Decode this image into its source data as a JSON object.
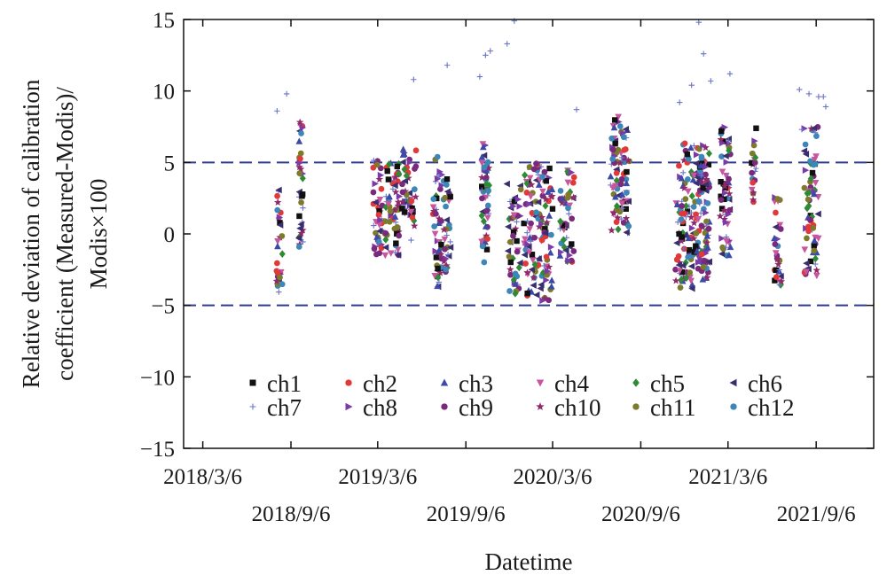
{
  "chart_data": {
    "type": "scatter",
    "title": "",
    "xlabel": "Datetime",
    "ylabel_lines": [
      "Relative deviation of calibration",
      "coefficient (Measured-Modis)/",
      "Modis×100"
    ],
    "ylim": [
      -15,
      15
    ],
    "yticks": [
      {
        "value": 15,
        "label": "15"
      },
      {
        "value": 10,
        "label": "10"
      },
      {
        "value": 5,
        "label": "5"
      },
      {
        "value": 0,
        "label": "0"
      },
      {
        "value": -5,
        "label": "−5"
      },
      {
        "value": -10,
        "label": "−10"
      },
      {
        "value": -15,
        "label": "−15"
      }
    ],
    "xlim_days": [
      -40,
      1400
    ],
    "xticks": [
      {
        "day": 0,
        "label": "2018/3/6",
        "row": 1
      },
      {
        "day": 184,
        "label": "2018/9/6",
        "row": 2
      },
      {
        "day": 365,
        "label": "2019/3/6",
        "row": 1
      },
      {
        "day": 549,
        "label": "2019/9/6",
        "row": 2
      },
      {
        "day": 730,
        "label": "2020/3/6",
        "row": 1
      },
      {
        "day": 914,
        "label": "2020/9/6",
        "row": 2
      },
      {
        "day": 1096,
        "label": "2021/3/6",
        "row": 1
      },
      {
        "day": 1280,
        "label": "2021/9/6",
        "row": 2
      }
    ],
    "reference_lines": [
      5,
      -5
    ],
    "reference_line_color": "#2e3a8c",
    "series": [
      {
        "name": "ch1",
        "marker": "square",
        "color": "#111111"
      },
      {
        "name": "ch2",
        "marker": "circle",
        "color": "#e0393a"
      },
      {
        "name": "ch3",
        "marker": "triangle-up",
        "color": "#3b4aa6"
      },
      {
        "name": "ch4",
        "marker": "triangle-down",
        "color": "#c9559e"
      },
      {
        "name": "ch5",
        "marker": "diamond",
        "color": "#2f8a36"
      },
      {
        "name": "ch6",
        "marker": "triangle-left",
        "color": "#3a2f6e"
      },
      {
        "name": "ch7",
        "marker": "plus",
        "color": "#6b74c8"
      },
      {
        "name": "ch8",
        "marker": "triangle-right",
        "color": "#7a3aa8"
      },
      {
        "name": "ch9",
        "marker": "circle",
        "color": "#7a2a7c"
      },
      {
        "name": "ch10",
        "marker": "star",
        "color": "#8e2a6a"
      },
      {
        "name": "ch11",
        "marker": "circle",
        "color": "#7d7a2a"
      },
      {
        "name": "ch12",
        "marker": "circle",
        "color": "#3c86b8"
      }
    ],
    "clusters": [
      {
        "day": 160,
        "spread": 6,
        "count": 30,
        "ymin": -4.8,
        "ymax": 3.2
      },
      {
        "day": 205,
        "spread": 4,
        "count": 36,
        "ymin": -1,
        "ymax": 8.5
      },
      {
        "day": 365,
        "spread": 10,
        "count": 40,
        "ymin": -1.5,
        "ymax": 5.2
      },
      {
        "day": 395,
        "spread": 15,
        "count": 60,
        "ymin": -1.5,
        "ymax": 5
      },
      {
        "day": 430,
        "spread": 15,
        "count": 45,
        "ymin": -0.5,
        "ymax": 6
      },
      {
        "day": 490,
        "spread": 10,
        "count": 50,
        "ymin": -3.8,
        "ymax": 5.5
      },
      {
        "day": 510,
        "spread": 8,
        "count": 30,
        "ymin": -3,
        "ymax": 4
      },
      {
        "day": 590,
        "spread": 8,
        "count": 50,
        "ymin": -2,
        "ymax": 6.5
      },
      {
        "day": 650,
        "spread": 15,
        "count": 45,
        "ymin": -4.5,
        "ymax": 3.5
      },
      {
        "day": 700,
        "spread": 30,
        "count": 130,
        "ymin": -4.7,
        "ymax": 5
      },
      {
        "day": 760,
        "spread": 15,
        "count": 45,
        "ymin": -2,
        "ymax": 4.5
      },
      {
        "day": 870,
        "spread": 20,
        "count": 90,
        "ymin": 0,
        "ymax": 8.2
      },
      {
        "day": 1005,
        "spread": 20,
        "count": 90,
        "ymin": -4,
        "ymax": 6.5
      },
      {
        "day": 1040,
        "spread": 18,
        "count": 110,
        "ymin": -3.2,
        "ymax": 6.2
      },
      {
        "day": 1090,
        "spread": 12,
        "count": 60,
        "ymin": -2,
        "ymax": 7.5
      },
      {
        "day": 1150,
        "spread": 5,
        "count": 20,
        "ymin": 2,
        "ymax": 7.5
      },
      {
        "day": 1200,
        "spread": 8,
        "count": 30,
        "ymin": -3.8,
        "ymax": 2.6
      },
      {
        "day": 1270,
        "spread": 15,
        "count": 70,
        "ymin": -3,
        "ymax": 7.5
      }
    ],
    "outliers_ch7": [
      {
        "day": 155,
        "y": 8.6
      },
      {
        "day": 175,
        "y": 9.8
      },
      {
        "day": 440,
        "y": 10.8
      },
      {
        "day": 510,
        "y": 11.8
      },
      {
        "day": 578,
        "y": 11.0
      },
      {
        "day": 590,
        "y": 12.5
      },
      {
        "day": 600,
        "y": 12.8
      },
      {
        "day": 635,
        "y": 13.3
      },
      {
        "day": 650,
        "y": 14.9
      },
      {
        "day": 780,
        "y": 8.7
      },
      {
        "day": 995,
        "y": 9.2
      },
      {
        "day": 1020,
        "y": 10.4
      },
      {
        "day": 1035,
        "y": 14.8
      },
      {
        "day": 1045,
        "y": 12.6
      },
      {
        "day": 1060,
        "y": 10.7
      },
      {
        "day": 1100,
        "y": 11.2
      },
      {
        "day": 1245,
        "y": 10.1
      },
      {
        "day": 1265,
        "y": 9.8
      },
      {
        "day": 1285,
        "y": 9.6
      },
      {
        "day": 1295,
        "y": 9.6
      },
      {
        "day": 1300,
        "y": 8.9
      },
      {
        "day": 1250,
        "y": 7.3
      }
    ],
    "seed": 20180306
  }
}
